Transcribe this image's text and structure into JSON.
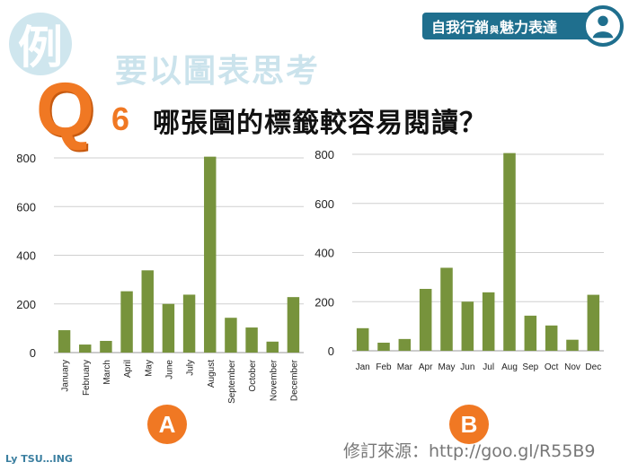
{
  "banner": {
    "text_a": "自我行銷",
    "text_small": "與",
    "text_b": "魅力表達"
  },
  "header": {
    "example_glyph": "例",
    "subtitle": "要以圖表思考"
  },
  "question": {
    "letter": "Q",
    "number": "6",
    "text": "哪張圖的標籤較容易閱讀？"
  },
  "labels": {
    "a": "A",
    "b": "B"
  },
  "source": "修訂來源：http://goo.gl/R55B9",
  "footer": "Ly TSU…ING",
  "colors": {
    "bar": "#77933c",
    "accent": "#f07823",
    "banner": "#1f6f8e"
  },
  "chart_data": [
    {
      "type": "bar",
      "title": "",
      "categories": [
        "January",
        "February",
        "March",
        "April",
        "May",
        "June",
        "July",
        "August",
        "September",
        "October",
        "November",
        "December"
      ],
      "values": [
        92,
        33,
        48,
        252,
        338,
        200,
        238,
        805,
        143,
        103,
        45,
        228
      ],
      "ylim": [
        0,
        800
      ],
      "yticks": [
        0,
        200,
        400,
        600,
        800
      ],
      "category_label_orientation": "vertical",
      "grid": true
    },
    {
      "type": "bar",
      "title": "",
      "categories": [
        "Jan",
        "Feb",
        "Mar",
        "Apr",
        "May",
        "Jun",
        "Jul",
        "Aug",
        "Sep",
        "Oct",
        "Nov",
        "Dec"
      ],
      "values": [
        92,
        33,
        48,
        252,
        338,
        200,
        238,
        805,
        143,
        103,
        45,
        228
      ],
      "ylim": [
        0,
        800
      ],
      "yticks": [
        0,
        200,
        400,
        600,
        800
      ],
      "category_label_orientation": "horizontal",
      "grid": true
    }
  ]
}
